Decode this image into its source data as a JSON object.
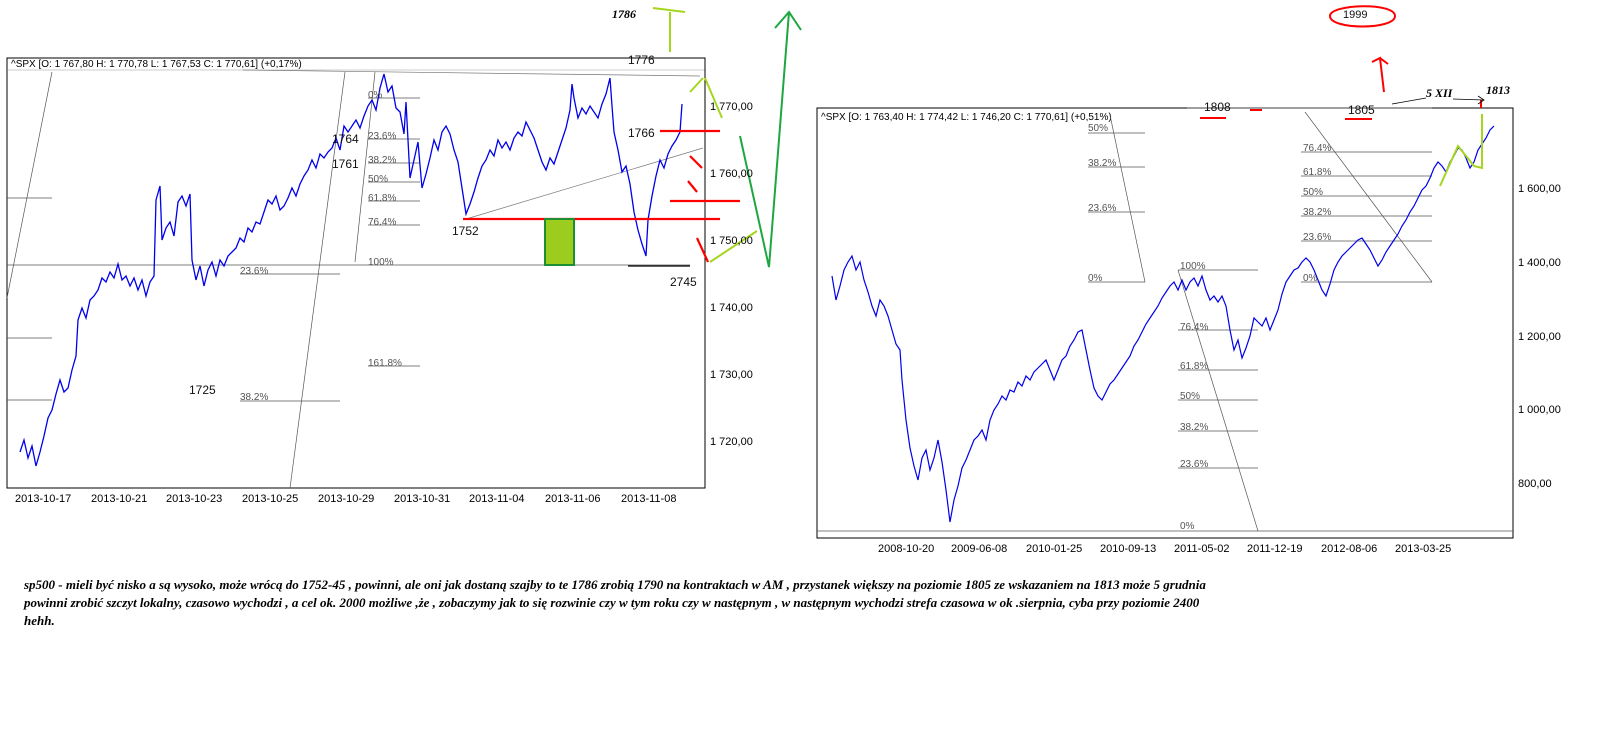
{
  "left_chart": {
    "header": "^SPX [O: 1 767,80  H: 1 770,78  L: 1 767,53  C: 1 770,61] (+0,17%)",
    "x_ticks": [
      "2013-10-17",
      "2013-10-21",
      "2013-10-23",
      "2013-10-25",
      "2013-10-29",
      "2013-10-31",
      "2013-11-04",
      "2013-11-06",
      "2013-11-08"
    ],
    "y_ticks": [
      "1 770,00",
      "1 760,00",
      "1 750,00",
      "1 740,00",
      "1 730,00",
      "1 720,00"
    ],
    "fib_upper": [
      "0%",
      "23.6%",
      "38.2%",
      "50%",
      "61.8%",
      "76.4%",
      "100%",
      "161.8%"
    ],
    "fib_lower": [
      "23.6%",
      "38.2%"
    ],
    "annotations": {
      "a1776": "1776",
      "a1786": "1786",
      "a1766": "1766",
      "a1764": "1764",
      "a1761": "1761",
      "a1752": "1752",
      "a2745": "2745",
      "a1725": "1725"
    }
  },
  "right_chart": {
    "header": "^SPX [O: 1 763,40  H: 1 774,42  L: 1 746,20  C: 1 770,61] (+0,51%)",
    "x_ticks": [
      "2008-10-20",
      "2009-06-08",
      "2010-01-25",
      "2010-09-13",
      "2011-05-02",
      "2011-12-19",
      "2012-08-06",
      "2013-03-25"
    ],
    "y_ticks": [
      "1 600,00",
      "1 400,00",
      "1 200,00",
      "1 000,00",
      "800,00"
    ],
    "fib_a": [
      "50%",
      "38.2%",
      "23.6%",
      "0%"
    ],
    "fib_b": [
      "100%",
      "76.4%",
      "61.8%",
      "50%",
      "38.2%",
      "23.6%",
      "0%"
    ],
    "fib_c": [
      "76.4%",
      "61.8%",
      "50%",
      "38.2%",
      "23.6%",
      "0%"
    ],
    "annotations": {
      "a1808": "1808",
      "a1805": "1805",
      "a5xii": "5 XII",
      "a1813": "1813",
      "a1999": "1999"
    }
  },
  "chart_data": [
    {
      "type": "line",
      "title": "^SPX",
      "x": [
        "2013-10-17",
        "2013-10-21",
        "2013-10-23",
        "2013-10-25",
        "2013-10-29",
        "2013-10-31",
        "2013-11-04",
        "2013-11-06",
        "2013-11-08"
      ],
      "series": [
        {
          "name": "^SPX",
          "values": [
            1721,
            1742,
            1744,
            1755,
            1768,
            1757,
            1763,
            1770,
            1770
          ]
        }
      ],
      "ylim": [
        1713,
        1774
      ],
      "grid": false
    },
    {
      "type": "line",
      "title": "^SPX",
      "x": [
        "2008-10-20",
        "2009-06-08",
        "2010-01-25",
        "2010-09-13",
        "2011-05-02",
        "2011-12-19",
        "2012-08-06",
        "2013-03-25"
      ],
      "series": [
        {
          "name": "^SPX",
          "values": [
            900,
            940,
            1100,
            1110,
            1350,
            1220,
            1400,
            1560
          ]
        }
      ],
      "ylim": [
        650,
        1850
      ],
      "grid": false
    }
  ],
  "comment": {
    "line1": "sp500 - mieli być nisko a są wysoko, może wrócą do 1752-45 , powinni, ale oni jak dostaną szajby to te 1786 zrobią 1790 na kontraktach w AM , przystanek większy na poziomie 1805 ze wskazaniem na 1813 może 5 grudnia",
    "line2": "powinni zrobić szczyt lokalny, czasowo wychodzi , a cel ok. 2000 możliwe ,że , zobaczymy jak to się rozwinie czy w tym roku czy w następnym , w następnym wychodzi strefa czasowa w ok .sierpnia, cyba przy poziomie 2400",
    "line3": "hehh."
  }
}
